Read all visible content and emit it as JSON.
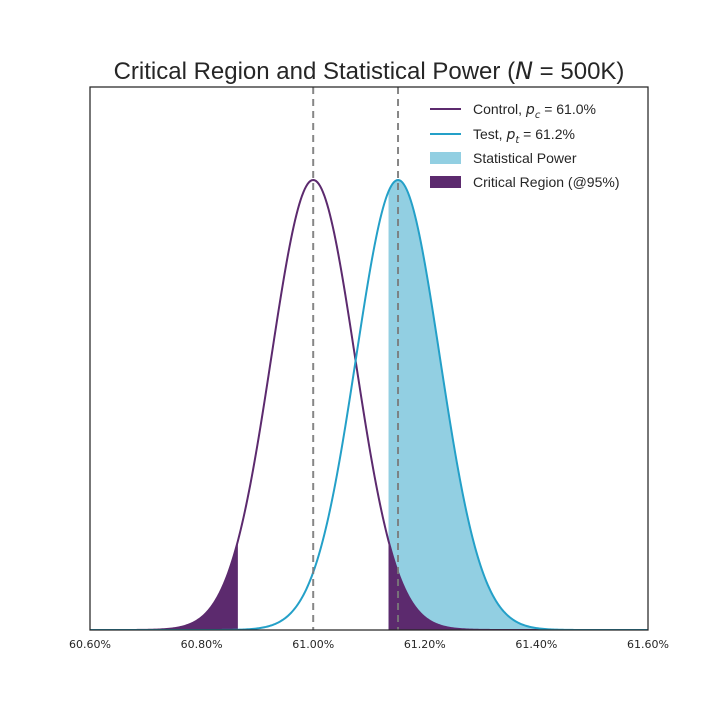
{
  "colors": {
    "control": "#5c2a6e",
    "test": "#24a0c8",
    "power_fill": "#92cfe2",
    "critical_fill": "#5c2a6e",
    "mean_line": "#7a7a7a",
    "axes": "#262626"
  },
  "chart_data": {
    "type": "line",
    "title": {
      "prefix": "Critical Region and Statistical Power (",
      "math": "N",
      "suffix": " = 500K)"
    },
    "x_tick_labels": [
      "60.60%",
      "60.80%",
      "61.00%",
      "61.20%",
      "61.40%",
      "61.60%"
    ],
    "x_ticks": [
      60.6,
      60.8,
      61.0,
      61.2,
      61.4,
      61.6
    ],
    "xlim": [
      60.6,
      61.6
    ],
    "xlabel": "",
    "ylabel": "",
    "y_ticks_visible": false,
    "grid": false,
    "legend_position": "top-right",
    "series": [
      {
        "key": "control",
        "kind": "line",
        "legend": {
          "prefix": "Control, ",
          "var": "p",
          "sub": "c",
          "value": " = 61.0%"
        },
        "mean": 61.0,
        "sd": 0.075
      },
      {
        "key": "test",
        "kind": "line",
        "legend": {
          "prefix": "Test, ",
          "var": "p",
          "sub": "t",
          "value": " = 61.2%"
        },
        "mean": 61.152,
        "sd": 0.075
      },
      {
        "key": "power",
        "kind": "area",
        "legend": {
          "prefix": "Statistical Power"
        },
        "under": "test",
        "range": [
          61.135,
          61.6
        ]
      },
      {
        "key": "critical",
        "kind": "area",
        "legend": {
          "prefix": "Critical Region (@95%)"
        },
        "under": "control",
        "ranges": [
          [
            60.6,
            60.865
          ],
          [
            61.135,
            61.6
          ]
        ]
      }
    ],
    "reference_lines": [
      {
        "x": 61.0,
        "style": "dashed"
      },
      {
        "x": 61.152,
        "style": "dashed"
      }
    ]
  }
}
